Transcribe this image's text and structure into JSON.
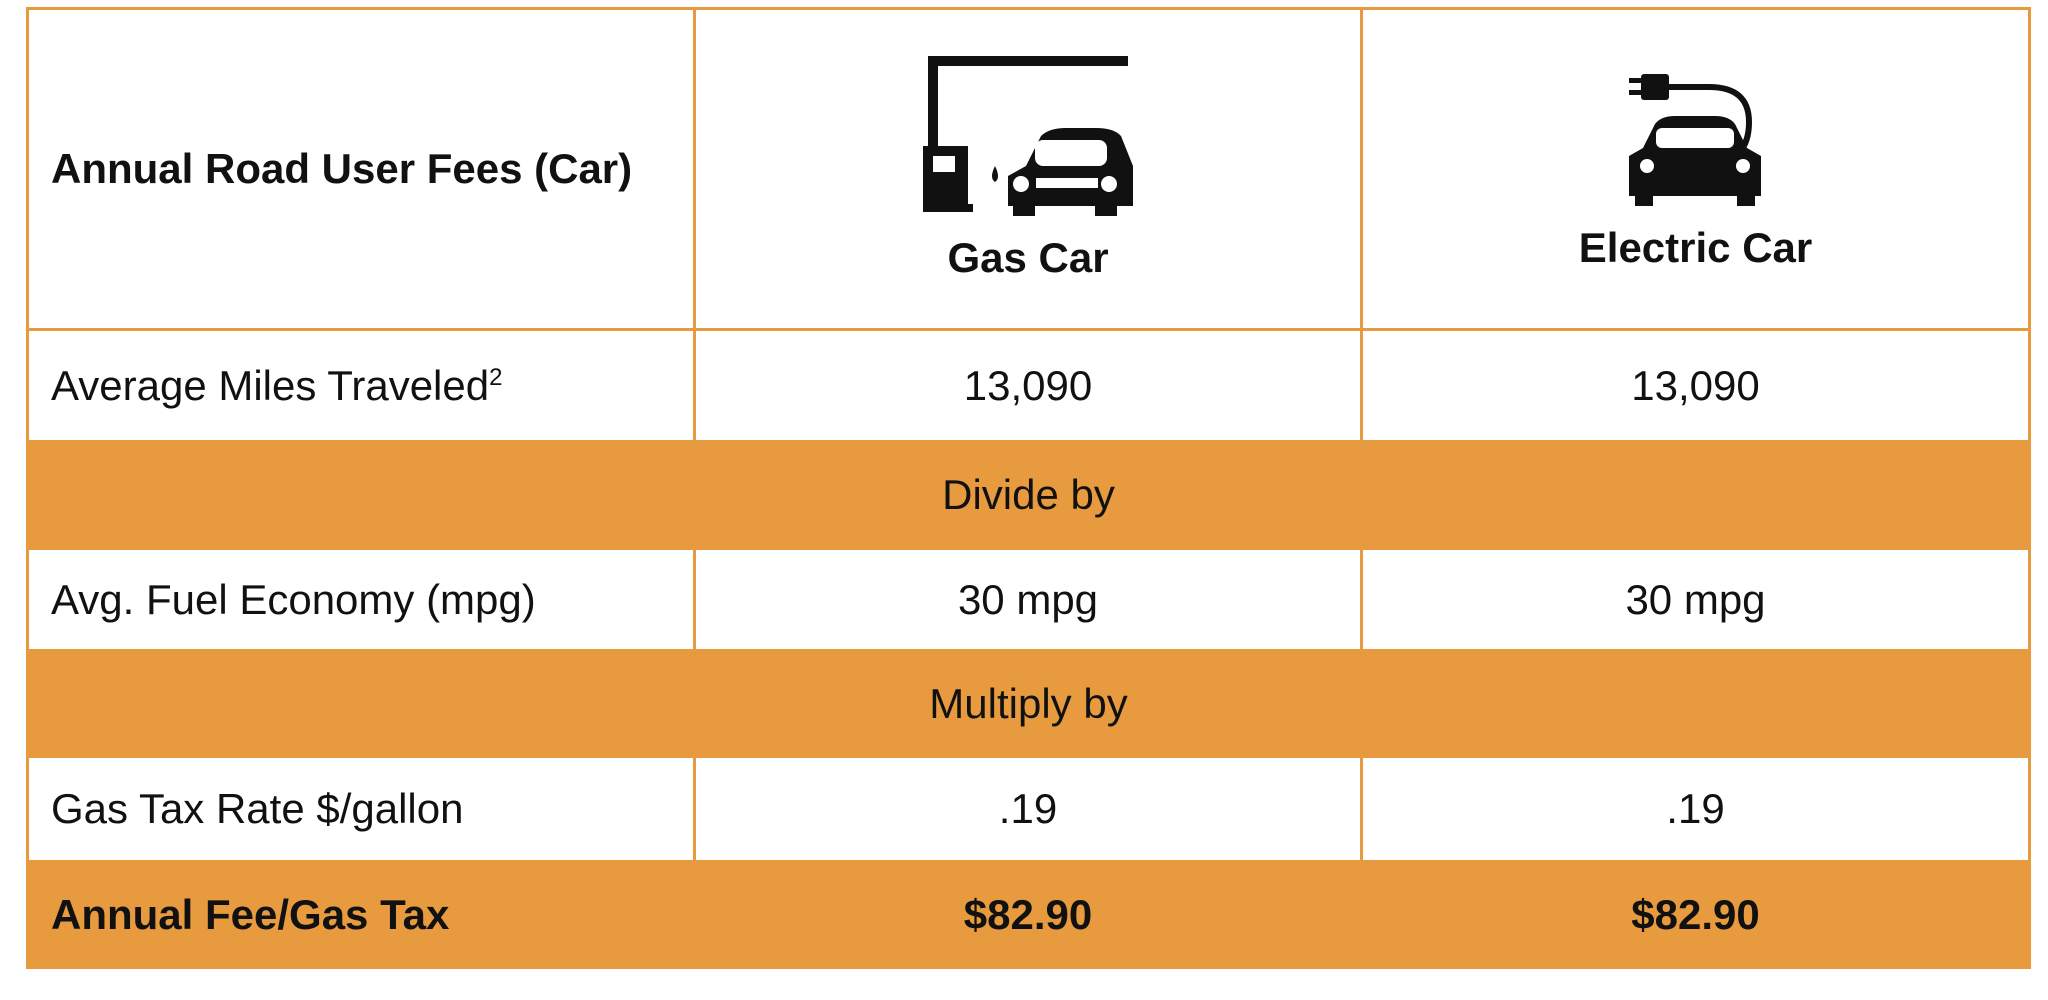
{
  "table": {
    "header": [
      "Annual Road User Fees (Car)",
      "Gas Car",
      "Electric Car"
    ],
    "rows": [
      {
        "cells": [
          "Average Miles Traveled",
          "13,090",
          "13,090"
        ],
        "footnote": "2"
      },
      {
        "span": "Divide by"
      },
      {
        "cells": [
          "Avg. Fuel Economy (mpg)",
          "30 mpg",
          "30 mpg"
        ]
      },
      {
        "span": "Multiply by"
      },
      {
        "cells": [
          "Gas Tax Rate $/gallon",
          ".19",
          ".19"
        ]
      },
      {
        "cells": [
          "Annual Fee/Gas Tax",
          "$82.90",
          "$82.90"
        ]
      }
    ]
  }
}
